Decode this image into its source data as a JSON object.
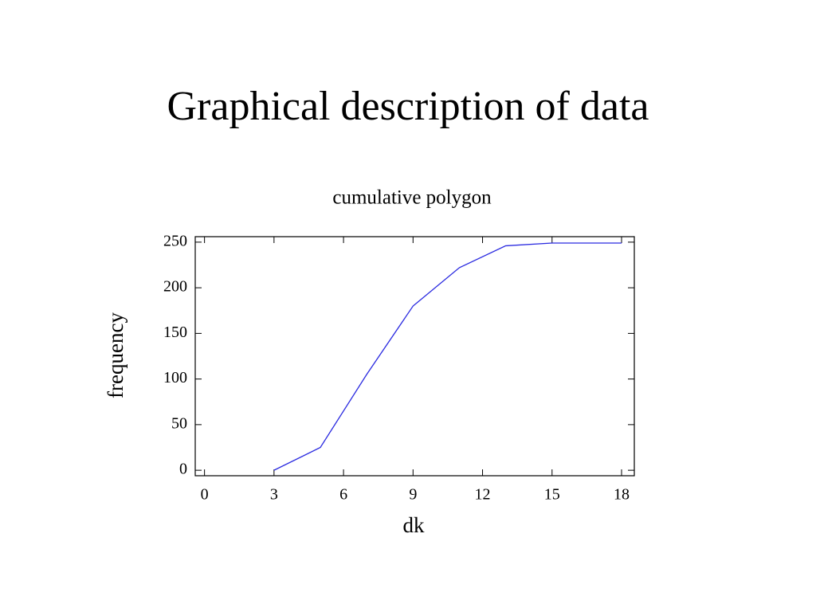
{
  "slide_title": "Graphical description of data",
  "chart_data": {
    "type": "line",
    "title": "cumulative polygon",
    "x_label": "dk",
    "y_label": "frequency",
    "x": [
      3,
      5,
      7,
      9,
      11,
      13,
      15,
      18
    ],
    "series": [
      {
        "color": "#2a2ae0",
        "values": [
          0,
          25,
          105,
          180,
          222,
          246,
          249,
          249
        ]
      }
    ],
    "xlim": [
      -0.4,
      18.55
    ],
    "ylim": [
      -6,
      256
    ],
    "xticks": [
      0,
      3,
      6,
      9,
      12,
      15,
      18
    ],
    "yticks": [
      0,
      50,
      100,
      150,
      200,
      250
    ],
    "grid": false
  }
}
